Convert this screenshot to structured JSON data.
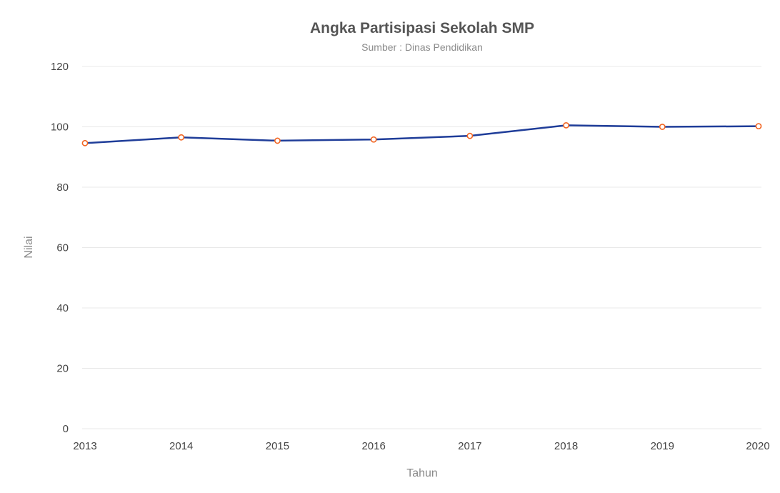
{
  "chart_data": {
    "type": "line",
    "title": "Angka Partisipasi Sekolah SMP",
    "subtitle": "Sumber : Dinas Pendidikan",
    "xlabel": "Tahun",
    "ylabel": "Nilai",
    "categories": [
      "2013",
      "2014",
      "2015",
      "2016",
      "2017",
      "2018",
      "2019",
      "2020"
    ],
    "series": [
      {
        "values": [
          94.6,
          96.5,
          95.4,
          95.8,
          97.0,
          100.5,
          100.0,
          100.2
        ]
      }
    ],
    "ylim": [
      0,
      120
    ],
    "yticks": [
      "0",
      "20",
      "40",
      "60",
      "80",
      "100",
      "120"
    ],
    "grid": true,
    "legend": "none",
    "colors": {
      "line": "#1f3d99",
      "marker_stroke": "#f26522",
      "marker_fill": "#ffffff",
      "grid": "#e8e8e8"
    }
  }
}
